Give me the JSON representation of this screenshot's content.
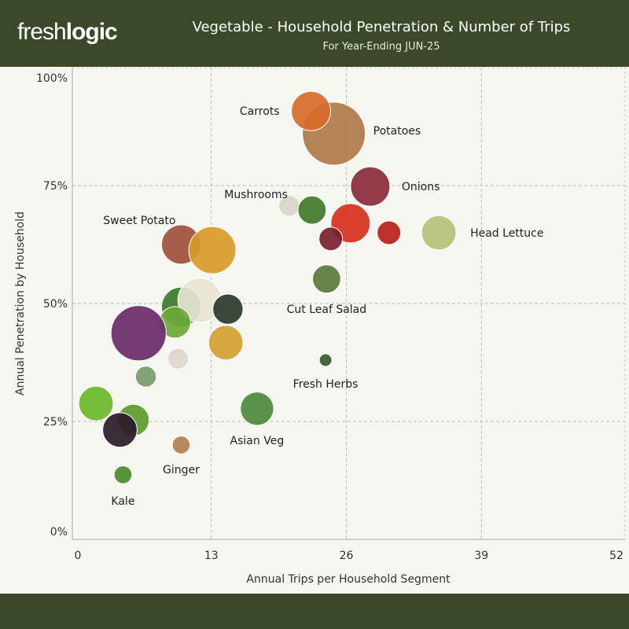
{
  "header": {
    "logo": {
      "part1": "fresh",
      "part2": "logic"
    },
    "title": "Vegetable - Household Penetration & Number of Trips",
    "subtitle": "For Year-Ending JUN-25"
  },
  "colors": {
    "header_bg": "#3a4a28",
    "plot_bg": "#f4f6ef",
    "grid": "#bbbbbb"
  },
  "chart_data": {
    "type": "scatter",
    "variant": "bubble",
    "xlabel": "Annual Trips per Household Segment",
    "ylabel": "Annual Penetration by Household",
    "xlim": [
      0,
      52
    ],
    "ylim": [
      0,
      100
    ],
    "x_ticks": [
      "0",
      "13",
      "26",
      "39",
      "52"
    ],
    "y_ticks": [
      "0%",
      "25%",
      "50%",
      "75%",
      "100%"
    ],
    "grid": true,
    "points": [
      {
        "label": "Potatoes",
        "x": 24.8,
        "y": 86.0,
        "size": 100,
        "color": "#b0784a"
      },
      {
        "label": "Carrots",
        "x": 22.6,
        "y": 90.8,
        "size": 39,
        "color": "#d86a2a"
      },
      {
        "label": "Onions",
        "x": 28.3,
        "y": 74.8,
        "size": 39,
        "color": "#8a2a3a"
      },
      {
        "label": "",
        "x": 20.5,
        "y": 70.7,
        "size": 11,
        "color": "#d8d4c8"
      },
      {
        "label": "Mushrooms",
        "x": 22.7,
        "y": 69.8,
        "size": 20,
        "color": "#3f7a2a"
      },
      {
        "label": "",
        "x": 26.4,
        "y": 67.0,
        "size": 39,
        "color": "#d8301e"
      },
      {
        "label": "",
        "x": 30.1,
        "y": 65.0,
        "size": 14,
        "color": "#b8201a"
      },
      {
        "label": "Head Lettuce",
        "x": 34.9,
        "y": 65.0,
        "size": 30,
        "color": "#b8c078"
      },
      {
        "label": "",
        "x": 24.5,
        "y": 63.7,
        "size": 14,
        "color": "#7a2030"
      },
      {
        "label": "Sweet Potato",
        "x": 10.1,
        "y": 62.5,
        "size": 39,
        "color": "#a0503a"
      },
      {
        "label": "",
        "x": 13.1,
        "y": 61.3,
        "size": 56,
        "color": "#d89a2a"
      },
      {
        "label": "Cut Leaf Salad",
        "x": 24.1,
        "y": 55.2,
        "size": 20,
        "color": "#5a7a3a"
      },
      {
        "label": "",
        "x": 10.1,
        "y": 49.3,
        "size": 39,
        "color": "#3a7a2a"
      },
      {
        "label": "",
        "x": 11.9,
        "y": 50.7,
        "size": 49,
        "color": "#e8e4d0"
      },
      {
        "label": "",
        "x": 14.6,
        "y": 48.8,
        "size": 23,
        "color": "#2a3a2a"
      },
      {
        "label": "",
        "x": 9.5,
        "y": 46.0,
        "size": 25,
        "color": "#6aa83a"
      },
      {
        "label": "",
        "x": 6.0,
        "y": 43.7,
        "size": 77,
        "color": "#6a2a6a"
      },
      {
        "label": "",
        "x": 14.4,
        "y": 41.7,
        "size": 30,
        "color": "#d0a030"
      },
      {
        "label": "",
        "x": 9.8,
        "y": 38.3,
        "size": 11,
        "color": "#ddd6cc"
      },
      {
        "label": "Fresh Herbs",
        "x": 24.0,
        "y": 38.0,
        "size": 4,
        "color": "#3a5a2a"
      },
      {
        "label": "",
        "x": 6.7,
        "y": 34.5,
        "size": 11,
        "color": "#7a9a6a"
      },
      {
        "label": "",
        "x": 1.9,
        "y": 28.8,
        "size": 30,
        "color": "#6ab82a"
      },
      {
        "label": "Asian Veg",
        "x": 17.4,
        "y": 27.7,
        "size": 28,
        "color": "#4a8a3a"
      },
      {
        "label": "",
        "x": 5.5,
        "y": 25.3,
        "size": 25,
        "color": "#5a9a2a"
      },
      {
        "label": "",
        "x": 4.2,
        "y": 23.2,
        "size": 30,
        "color": "#2a1a2a"
      },
      {
        "label": "Ginger",
        "x": 10.1,
        "y": 20.0,
        "size": 8,
        "color": "#b08050"
      },
      {
        "label": "Kale",
        "x": 4.5,
        "y": 13.7,
        "size": 8,
        "color": "#4a8a2a"
      }
    ]
  }
}
